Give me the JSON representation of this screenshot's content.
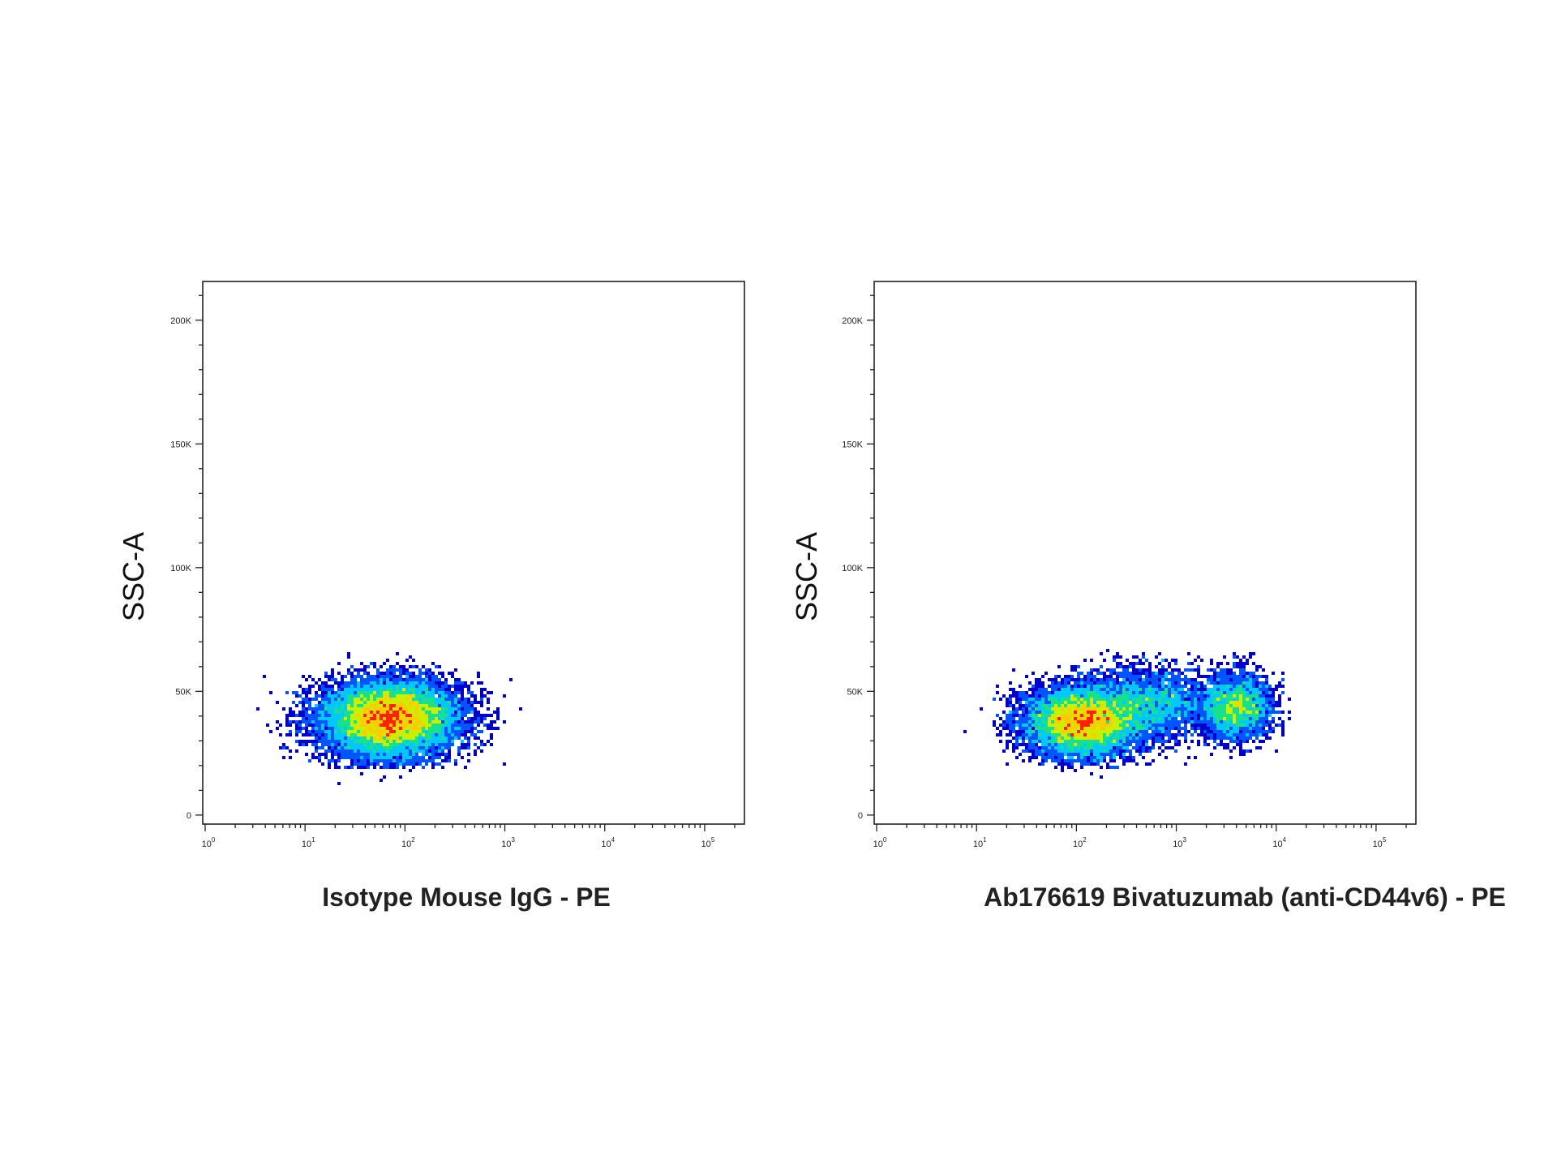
{
  "chart_data": [
    {
      "type": "scatter",
      "subtype": "flow-cytometry-density",
      "xlabel": "Isotype Mouse IgG - PE",
      "ylabel": "SSC-A",
      "xscale": "log",
      "xlim": [
        1,
        200000
      ],
      "ylim": [
        -2000,
        215000
      ],
      "xticks": [
        {
          "value": 1,
          "base": "10",
          "exp": "0"
        },
        {
          "value": 10,
          "base": "10",
          "exp": "1"
        },
        {
          "value": 100,
          "base": "10",
          "exp": "2"
        },
        {
          "value": 1000,
          "base": "10",
          "exp": "3"
        },
        {
          "value": 10000,
          "base": "10",
          "exp": "4"
        },
        {
          "value": 100000,
          "base": "10",
          "exp": "5"
        }
      ],
      "yticks": [
        {
          "value": 0,
          "label": "0"
        },
        {
          "value": 50000,
          "label": "50K"
        },
        {
          "value": 100000,
          "label": "100K"
        },
        {
          "value": 150000,
          "label": "150K"
        },
        {
          "value": 200000,
          "label": "200K"
        }
      ],
      "populations": [
        {
          "center_log10_x": 1.85,
          "center_y": 39000,
          "spread_log10_x": 0.33,
          "spread_y": 7500,
          "fraction": 1.0
        }
      ],
      "density_colors": [
        "#0000cc",
        "#0055ff",
        "#00c8ff",
        "#19e08a",
        "#c8f000",
        "#ffcc00",
        "#ff2200"
      ]
    },
    {
      "type": "scatter",
      "subtype": "flow-cytometry-density",
      "xlabel": "Ab176619 Bivatuzumab (anti-CD44v6) - PE",
      "ylabel": "SSC-A",
      "xscale": "log",
      "xlim": [
        1,
        200000
      ],
      "ylim": [
        -2000,
        215000
      ],
      "xticks": [
        {
          "value": 1,
          "base": "10",
          "exp": "0"
        },
        {
          "value": 10,
          "base": "10",
          "exp": "1"
        },
        {
          "value": 100,
          "base": "10",
          "exp": "2"
        },
        {
          "value": 1000,
          "base": "10",
          "exp": "3"
        },
        {
          "value": 10000,
          "base": "10",
          "exp": "4"
        },
        {
          "value": 100000,
          "base": "10",
          "exp": "5"
        }
      ],
      "yticks": [
        {
          "value": 0,
          "label": "0"
        },
        {
          "value": 50000,
          "label": "50K"
        },
        {
          "value": 100000,
          "label": "100K"
        },
        {
          "value": 150000,
          "label": "150K"
        },
        {
          "value": 200000,
          "label": "200K"
        }
      ],
      "populations": [
        {
          "center_log10_x": 2.05,
          "center_y": 38000,
          "spread_log10_x": 0.28,
          "spread_y": 7000,
          "fraction": 0.62
        },
        {
          "center_log10_x": 2.75,
          "center_y": 45000,
          "spread_log10_x": 0.3,
          "spread_y": 7500,
          "fraction": 0.18
        },
        {
          "center_log10_x": 3.6,
          "center_y": 44000,
          "spread_log10_x": 0.18,
          "spread_y": 6500,
          "fraction": 0.2
        }
      ],
      "density_colors": [
        "#0000cc",
        "#0055ff",
        "#00c8ff",
        "#19e08a",
        "#c8f000",
        "#ffcc00",
        "#ff2200"
      ]
    }
  ]
}
